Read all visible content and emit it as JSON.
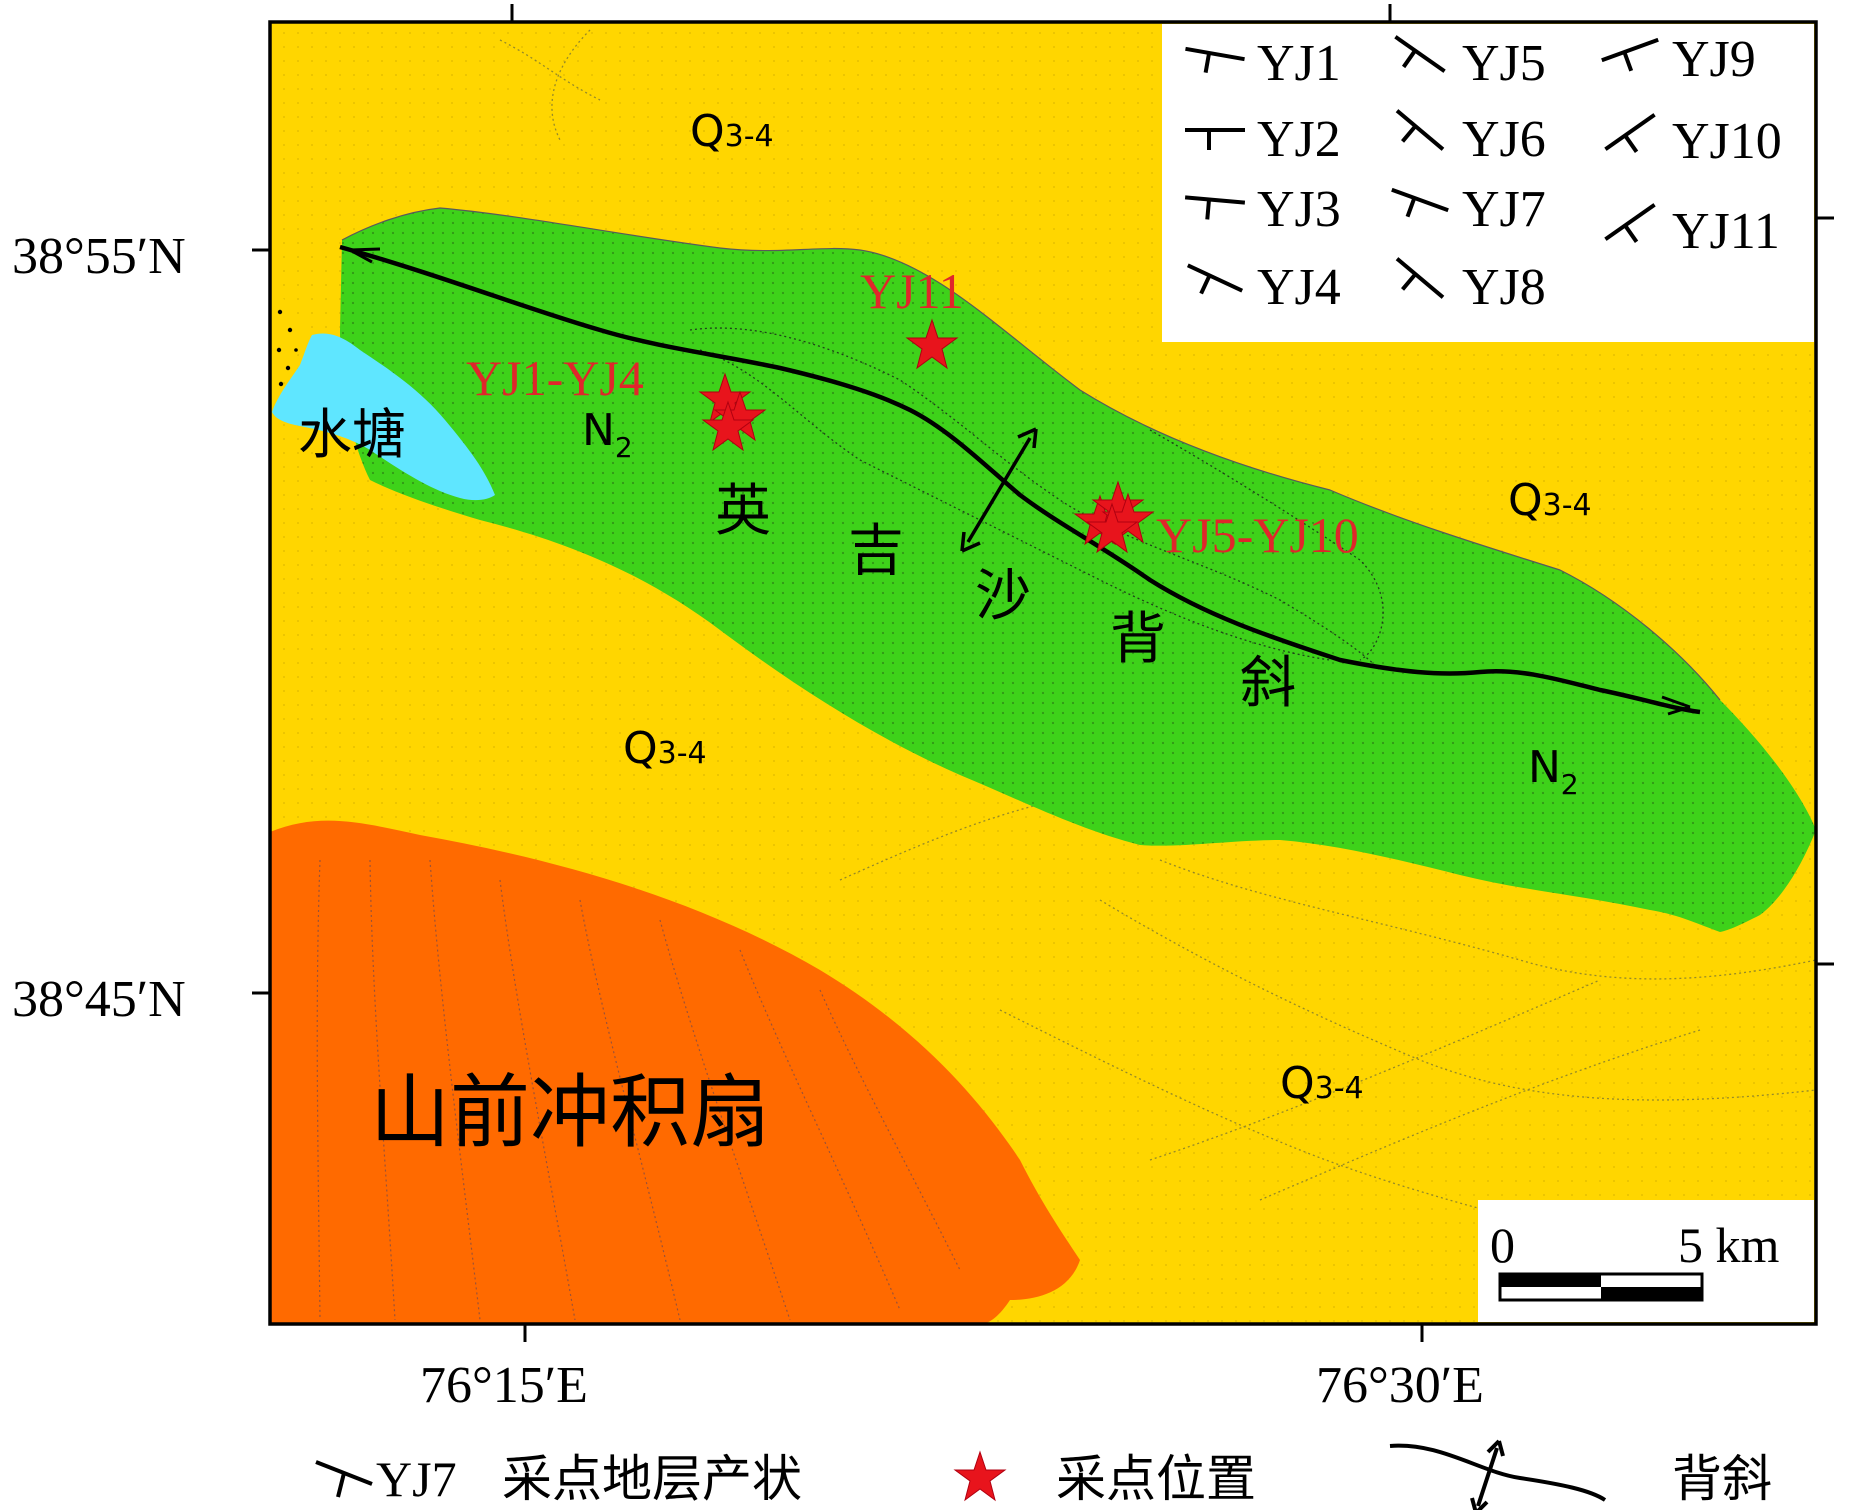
{
  "colors": {
    "quaternary": "#ffd600",
    "neogene": "#3ed21a",
    "fan": "#ff6a00",
    "pond": "#5fe6ff",
    "sample_star": "#e8141c",
    "label_red": "#e0262b",
    "frame": "#000000"
  },
  "coordinates": {
    "lat_north": "38°55′N",
    "lat_south": "38°45′N",
    "lon_west": "76°15′E",
    "lon_east": "76°30′E"
  },
  "units": {
    "q_labels": [
      {
        "main": "Q",
        "sub": "3-4"
      },
      {
        "main": "Q",
        "sub": "3-4"
      },
      {
        "main": "Q",
        "sub": "3-4"
      },
      {
        "main": "Q",
        "sub": "3-4"
      }
    ],
    "n_labels": [
      {
        "main": "N",
        "sub": "2"
      },
      {
        "main": "N",
        "sub": "2"
      }
    ]
  },
  "place_labels": {
    "pond": "水塘",
    "fan": "山前冲积扇",
    "anticline_chars": [
      "英",
      "吉",
      "沙",
      "背",
      "斜"
    ]
  },
  "sample_labels": {
    "group_a": "YJ1-YJ4",
    "yj11": "YJ11",
    "group_b": "YJ5-YJ10"
  },
  "attitude_legend": [
    {
      "label": "YJ1",
      "strike_deg": 10,
      "dip_deg": 90
    },
    {
      "label": "YJ2",
      "strike_deg": 0,
      "dip_deg": 90
    },
    {
      "label": "YJ3",
      "strike_deg": 5,
      "dip_deg": 90
    },
    {
      "label": "YJ4",
      "strike_deg": 25,
      "dip_deg": 90
    },
    {
      "label": "YJ5",
      "strike_deg": 35,
      "dip_deg": 90
    },
    {
      "label": "YJ6",
      "strike_deg": 40,
      "dip_deg": 90
    },
    {
      "label": "YJ7",
      "strike_deg": 20,
      "dip_deg": 90
    },
    {
      "label": "YJ8",
      "strike_deg": 40,
      "dip_deg": 90
    },
    {
      "label": "YJ9",
      "strike_deg": -20,
      "dip_deg": 90
    },
    {
      "label": "YJ10",
      "strike_deg": -35,
      "dip_deg": 90
    },
    {
      "label": "YJ11",
      "strike_deg": -35,
      "dip_deg": 90
    }
  ],
  "scale_bar": {
    "zero": "0",
    "end": "5 km"
  },
  "bottom_legend": {
    "attitude_sample": "YJ7",
    "attitude_text": "采点地层产状",
    "sample_location_text": "采点位置",
    "anticline_text": "背斜"
  }
}
